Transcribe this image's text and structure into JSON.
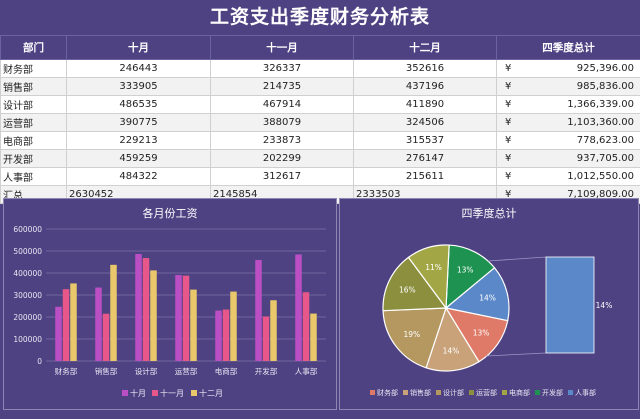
{
  "title": "工资支出季度财务分析表",
  "table": {
    "headers": [
      "部门",
      "十月",
      "十一月",
      "十二月",
      "四季度总计"
    ],
    "rows": [
      {
        "dept": "财务部",
        "oct": "246443",
        "nov": "326337",
        "dec": "352616",
        "currency": "¥",
        "total": "925,396.00"
      },
      {
        "dept": "销售部",
        "oct": "333905",
        "nov": "214735",
        "dec": "437196",
        "currency": "¥",
        "total": "985,836.00"
      },
      {
        "dept": "设计部",
        "oct": "486535",
        "nov": "467914",
        "dec": "411890",
        "currency": "¥",
        "total": "1,366,339.00"
      },
      {
        "dept": "运营部",
        "oct": "390775",
        "nov": "388079",
        "dec": "324506",
        "currency": "¥",
        "total": "1,103,360.00"
      },
      {
        "dept": "电商部",
        "oct": "229213",
        "nov": "233873",
        "dec": "315537",
        "currency": "¥",
        "total": "778,623.00"
      },
      {
        "dept": "开发部",
        "oct": "459259",
        "nov": "202299",
        "dec": "276147",
        "currency": "¥",
        "total": "937,705.00"
      },
      {
        "dept": "人事部",
        "oct": "484322",
        "nov": "312617",
        "dec": "215611",
        "currency": "¥",
        "total": "1,012,550.00"
      }
    ],
    "summary": {
      "label": "汇总",
      "oct": "2630452",
      "nov": "2145854",
      "dec": "2333503",
      "currency": "¥",
      "total": "7,109,809.00"
    }
  },
  "chart_data": [
    {
      "type": "bar",
      "title": "各月份工资",
      "categories": [
        "财务部",
        "销售部",
        "设计部",
        "运营部",
        "电商部",
        "开发部",
        "人事部"
      ],
      "ylim": [
        0,
        600000
      ],
      "yticks": [
        "0",
        "100000",
        "200000",
        "300000",
        "400000",
        "500000",
        "600000"
      ],
      "legend_position": "bottom",
      "series": [
        {
          "name": "十月",
          "color": "#b94fc3",
          "values": [
            246443,
            333905,
            486535,
            390775,
            229213,
            459259,
            484322
          ]
        },
        {
          "name": "十一月",
          "color": "#e8578a",
          "values": [
            326337,
            214735,
            467914,
            388079,
            233873,
            202299,
            312617
          ]
        },
        {
          "name": "十二月",
          "color": "#e8c86a",
          "values": [
            352616,
            437196,
            411890,
            324506,
            315537,
            276147,
            215611
          ]
        }
      ]
    },
    {
      "type": "pie",
      "title": "四季度总计",
      "legend_position": "bottom",
      "categories": [
        "财务部",
        "销售部",
        "设计部",
        "运营部",
        "电商部",
        "开发部",
        "人事部"
      ],
      "values": [
        925396,
        985836,
        1366339,
        1103360,
        778623,
        937705,
        1012550
      ],
      "labels": [
        "13%",
        "14%",
        "19%",
        "16%",
        "11%",
        "13%",
        "14%"
      ],
      "colors": [
        "#e07a68",
        "#c9a27a",
        "#b59760",
        "#8b8f3e",
        "#a3a645",
        "#1e9250",
        "#5a88c9"
      ],
      "bar_of_pie_label": "14%"
    }
  ]
}
